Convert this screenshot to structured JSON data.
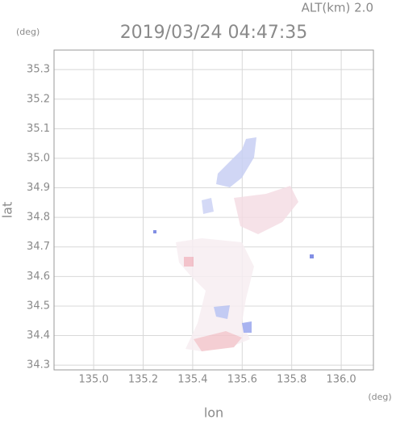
{
  "chart_data": {
    "type": "map",
    "title": "2019/03/24 04:47:35",
    "subtitle": "ALT(km) 2.0",
    "y_unit": "(deg)",
    "x_unit": "(deg)",
    "x_label": "lon",
    "y_label": "lat",
    "xlim": [
      134.84,
      136.13
    ],
    "ylim": [
      34.284,
      35.366
    ],
    "xticks": [
      {
        "value": 135.0,
        "label": "135.0"
      },
      {
        "value": 135.2,
        "label": "135.2"
      },
      {
        "value": 135.4,
        "label": "135.4"
      },
      {
        "value": 135.6,
        "label": "135.6"
      },
      {
        "value": 135.8,
        "label": "135.8"
      },
      {
        "value": 136.0,
        "label": "136.0"
      }
    ],
    "yticks": [
      34.3,
      34.4,
      34.5,
      34.6,
      34.7,
      34.8,
      34.9,
      {
        "value": 35.0,
        "label": "35.0"
      },
      35.1,
      35.2,
      35.3
    ],
    "grid": true
  }
}
